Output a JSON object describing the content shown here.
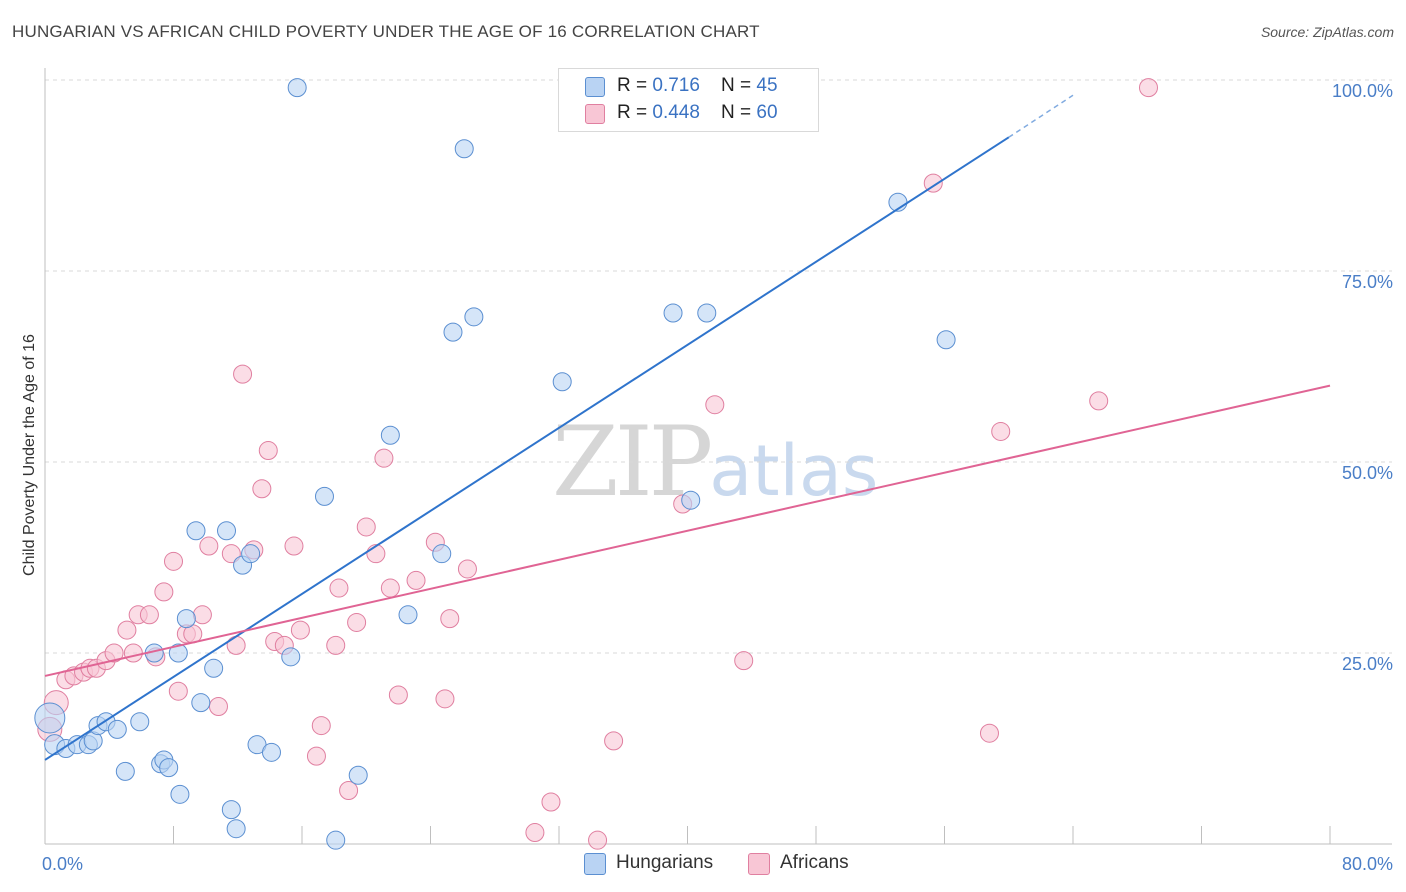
{
  "title": "HUNGARIAN VS AFRICAN CHILD POVERTY UNDER THE AGE OF 16 CORRELATION CHART",
  "source": "Source: ZipAtlas.com",
  "watermark": {
    "zip": "ZIP",
    "atlas": "atlas"
  },
  "legend": {
    "hungarians": {
      "r_label": "R = ",
      "r_value": "0.716",
      "n_label": "N = ",
      "n_value": "45"
    },
    "africans": {
      "r_label": "R = ",
      "r_value": "0.448",
      "n_label": "N = ",
      "n_value": "60"
    }
  },
  "bottom_legend": {
    "hungarians": "Hungarians",
    "africans": "Africans"
  },
  "colors": {
    "hungarians_fill": "#b9d3f3",
    "hungarians_stroke": "#5b8fd1",
    "hungarians_line": "#2f74cc",
    "africans_fill": "#f8c6d5",
    "africans_stroke": "#e07fa0",
    "africans_line": "#e06494",
    "grid": "#d8d8d8",
    "tick_text": "#4a7ec7"
  },
  "chart_data": {
    "type": "scatter",
    "title": "HUNGARIAN VS AFRICAN CHILD POVERTY UNDER THE AGE OF 16 CORRELATION CHART",
    "xlabel": "",
    "ylabel": "Child Poverty Under the Age of 16",
    "xlim": [
      0,
      80
    ],
    "ylim": [
      0,
      100
    ],
    "x_tick_labels": [
      "0.0%",
      "80.0%"
    ],
    "y_ticks": [
      25,
      50,
      75,
      100
    ],
    "y_tick_labels": [
      "25.0%",
      "50.0%",
      "75.0%",
      "100.0%"
    ],
    "series": [
      {
        "name": "Hungarians",
        "r": 0.716,
        "n": 45,
        "trend": {
          "x0": 0,
          "y0": 11,
          "x1": 60,
          "y1": 92.5,
          "dash_to_x": 64,
          "dash_to_y": 98
        },
        "points": [
          [
            0.3,
            16.5,
            30
          ],
          [
            0.6,
            13,
            20
          ],
          [
            1.3,
            12.5,
            18
          ],
          [
            2.0,
            13,
            18
          ],
          [
            2.7,
            13,
            18
          ],
          [
            3.0,
            13.5,
            18
          ],
          [
            3.3,
            15.5,
            18
          ],
          [
            3.8,
            16,
            18
          ],
          [
            4.5,
            15,
            18
          ],
          [
            5.0,
            9.5,
            18
          ],
          [
            5.9,
            16,
            18
          ],
          [
            6.8,
            25,
            18
          ],
          [
            7.2,
            10.5,
            18
          ],
          [
            7.4,
            11,
            18
          ],
          [
            7.7,
            10,
            18
          ],
          [
            8.3,
            25,
            18
          ],
          [
            8.4,
            6.5,
            18
          ],
          [
            8.8,
            29.5,
            18
          ],
          [
            9.4,
            41,
            18
          ],
          [
            9.7,
            18.5,
            18
          ],
          [
            10.5,
            23,
            18
          ],
          [
            11.3,
            41,
            18
          ],
          [
            11.6,
            4.5,
            18
          ],
          [
            11.9,
            2,
            18
          ],
          [
            12.3,
            36.5,
            18
          ],
          [
            12.8,
            38,
            18
          ],
          [
            13.2,
            13,
            18
          ],
          [
            14.1,
            12,
            18
          ],
          [
            15.3,
            24.5,
            18
          ],
          [
            15.7,
            99,
            18
          ],
          [
            17.4,
            45.5,
            18
          ],
          [
            18.1,
            0.5,
            18
          ],
          [
            19.5,
            9,
            18
          ],
          [
            21.5,
            53.5,
            18
          ],
          [
            22.6,
            30,
            18
          ],
          [
            24.7,
            38,
            18
          ],
          [
            25.4,
            67,
            18
          ],
          [
            26.1,
            91,
            18
          ],
          [
            26.7,
            69,
            18
          ],
          [
            32.2,
            60.5,
            18
          ],
          [
            39.1,
            69.5,
            18
          ],
          [
            40.2,
            45,
            18
          ],
          [
            41.2,
            69.5,
            18
          ],
          [
            53.1,
            84,
            18
          ],
          [
            56.1,
            66,
            18
          ]
        ]
      },
      {
        "name": "Africans",
        "r": 0.448,
        "n": 60,
        "trend": {
          "x0": 0,
          "y0": 22,
          "x1": 80,
          "y1": 60
        },
        "points": [
          [
            0.3,
            15,
            24
          ],
          [
            0.7,
            18.5,
            24
          ],
          [
            1.3,
            21.5,
            18
          ],
          [
            1.8,
            22,
            18
          ],
          [
            2.4,
            22.5,
            18
          ],
          [
            2.8,
            23,
            18
          ],
          [
            3.2,
            23,
            18
          ],
          [
            3.8,
            24,
            18
          ],
          [
            4.3,
            25,
            18
          ],
          [
            5.1,
            28,
            18
          ],
          [
            5.5,
            25,
            18
          ],
          [
            5.8,
            30,
            18
          ],
          [
            6.5,
            30,
            18
          ],
          [
            6.9,
            24.5,
            18
          ],
          [
            7.4,
            33,
            18
          ],
          [
            8.0,
            37,
            18
          ],
          [
            8.3,
            20,
            18
          ],
          [
            8.8,
            27.5,
            18
          ],
          [
            9.2,
            27.5,
            18
          ],
          [
            9.8,
            30,
            18
          ],
          [
            10.2,
            39,
            18
          ],
          [
            10.8,
            18,
            18
          ],
          [
            11.6,
            38,
            18
          ],
          [
            11.9,
            26,
            18
          ],
          [
            12.3,
            61.5,
            18
          ],
          [
            13.0,
            38.5,
            18
          ],
          [
            13.5,
            46.5,
            18
          ],
          [
            13.9,
            51.5,
            18
          ],
          [
            14.3,
            26.5,
            18
          ],
          [
            14.9,
            26,
            18
          ],
          [
            15.5,
            39,
            18
          ],
          [
            15.9,
            28,
            18
          ],
          [
            16.9,
            11.5,
            18
          ],
          [
            17.2,
            15.5,
            18
          ],
          [
            18.1,
            26,
            18
          ],
          [
            18.3,
            33.5,
            18
          ],
          [
            18.9,
            7,
            18
          ],
          [
            19.4,
            29,
            18
          ],
          [
            20.0,
            41.5,
            18
          ],
          [
            20.6,
            38,
            18
          ],
          [
            21.1,
            50.5,
            18
          ],
          [
            21.5,
            33.5,
            18
          ],
          [
            22.0,
            19.5,
            18
          ],
          [
            23.1,
            34.5,
            18
          ],
          [
            24.3,
            39.5,
            18
          ],
          [
            24.9,
            19,
            18
          ],
          [
            25.2,
            29.5,
            18
          ],
          [
            26.3,
            36,
            18
          ],
          [
            30.5,
            1.5,
            18
          ],
          [
            31.5,
            5.5,
            18
          ],
          [
            34.4,
            0.5,
            18
          ],
          [
            35.4,
            13.5,
            18
          ],
          [
            39.7,
            44.5,
            18
          ],
          [
            41.7,
            57.5,
            18
          ],
          [
            43.5,
            24,
            18
          ],
          [
            55.3,
            86.5,
            18
          ],
          [
            58.8,
            14.5,
            18
          ],
          [
            59.5,
            54,
            18
          ],
          [
            65.6,
            58,
            18
          ],
          [
            68.7,
            99,
            18
          ]
        ]
      }
    ]
  }
}
